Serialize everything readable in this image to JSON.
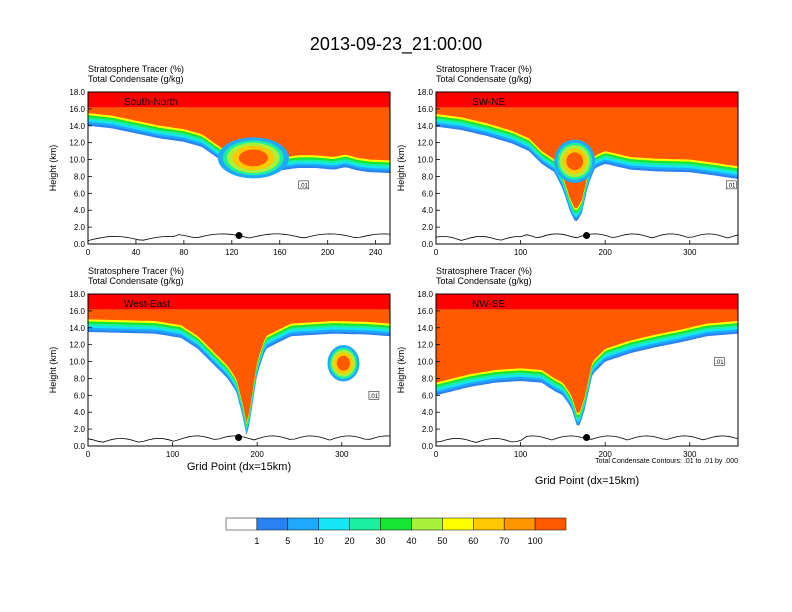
{
  "title": "2013-09-23_21:00:00",
  "panel_labels": [
    "Stratosphere Tracer   (%)",
    "Total Condensate   (g/kg)"
  ],
  "x_axis_title": "Grid Point (dx=15km)",
  "y_axis_title": "Height (km)",
  "contour_note": "Total Condensate Contours: .01 to .01 by .000",
  "contour_label": ".01",
  "colors": {
    "levels": [
      "#ffffff",
      "#2a82f0",
      "#1ea9ff",
      "#16e5f5",
      "#1af0a0",
      "#16e534",
      "#a8f03c",
      "#ffff00",
      "#ffc800",
      "#ff9600",
      "#ff5a00",
      "#ff0000"
    ],
    "contour": "#000000",
    "marker": "#000000"
  },
  "chart_data": [
    {
      "type": "heatmap",
      "name": "South-North",
      "xlim": [
        0,
        252
      ],
      "ylim": [
        0,
        18
      ],
      "xticks": [
        "0",
        "40",
        "80",
        "120",
        "160",
        "200",
        "240"
      ],
      "xtick_values": [
        0,
        40,
        80,
        120,
        160,
        200,
        240
      ],
      "yticks": [
        "0.0",
        "2.0",
        "4.0",
        "6.0",
        "8.0",
        "10.0",
        "12.0",
        "14.0",
        "16.0",
        "18.0"
      ],
      "tropopause_km": [
        [
          0,
          15.5
        ],
        [
          20,
          15.2
        ],
        [
          40,
          14.6
        ],
        [
          60,
          14.0
        ],
        [
          80,
          13.6
        ],
        [
          95,
          13.0
        ],
        [
          105,
          12.0
        ],
        [
          112,
          11.3
        ],
        [
          120,
          11.6
        ],
        [
          135,
          11.2
        ],
        [
          150,
          10.4
        ],
        [
          160,
          10.2
        ],
        [
          175,
          10.5
        ],
        [
          190,
          10.5
        ],
        [
          205,
          10.3
        ],
        [
          215,
          10.6
        ],
        [
          225,
          10.2
        ],
        [
          235,
          10.0
        ],
        [
          252,
          9.9
        ]
      ],
      "blob": {
        "x": 138,
        "y": 10.2,
        "rx": 22,
        "ry": 1.8
      },
      "marker": {
        "x": 126,
        "y": 1.0
      },
      "contour_label_pos": {
        "x": 180,
        "y": 7.0
      }
    },
    {
      "type": "heatmap",
      "name": "SW-NE",
      "xlim": [
        0,
        357
      ],
      "ylim": [
        0,
        18
      ],
      "xticks": [
        "0",
        "100",
        "200",
        "300"
      ],
      "xtick_values": [
        0,
        100,
        200,
        300
      ],
      "yticks": [
        "0.0",
        "2.0",
        "4.0",
        "6.0",
        "8.0",
        "10.0",
        "12.0",
        "14.0",
        "16.0",
        "18.0"
      ],
      "tropopause_km": [
        [
          0,
          15.4
        ],
        [
          30,
          15.0
        ],
        [
          60,
          14.3
        ],
        [
          90,
          13.4
        ],
        [
          110,
          12.5
        ],
        [
          125,
          11.0
        ],
        [
          140,
          10.0
        ],
        [
          150,
          8.0
        ],
        [
          158,
          5.5
        ],
        [
          165,
          4.0
        ],
        [
          172,
          5.0
        ],
        [
          180,
          8.5
        ],
        [
          188,
          10.5
        ],
        [
          200,
          11.0
        ],
        [
          230,
          10.3
        ],
        [
          260,
          10.1
        ],
        [
          300,
          10.0
        ],
        [
          330,
          9.6
        ],
        [
          357,
          9.2
        ]
      ],
      "blob": {
        "x": 164,
        "y": 9.8,
        "rx": 18,
        "ry": 1.9
      },
      "marker": {
        "x": 178,
        "y": 1.0
      },
      "contour_label_pos": {
        "x": 349,
        "y": 7.0
      }
    },
    {
      "type": "heatmap",
      "name": "West-East",
      "xlim": [
        0,
        357
      ],
      "ylim": [
        0,
        18
      ],
      "xticks": [
        "0",
        "100",
        "200",
        "300"
      ],
      "xtick_values": [
        0,
        100,
        200,
        300
      ],
      "yticks": [
        "0.0",
        "2.0",
        "4.0",
        "6.0",
        "8.0",
        "10.0",
        "12.0",
        "14.0",
        "16.0",
        "18.0"
      ],
      "tropopause_km": [
        [
          0,
          15.0
        ],
        [
          40,
          14.9
        ],
        [
          80,
          14.8
        ],
        [
          110,
          14.3
        ],
        [
          130,
          13.0
        ],
        [
          150,
          11.0
        ],
        [
          165,
          9.5
        ],
        [
          175,
          8.0
        ],
        [
          183,
          5.0
        ],
        [
          188,
          2.5
        ],
        [
          193,
          5.5
        ],
        [
          200,
          10.0
        ],
        [
          210,
          13.0
        ],
        [
          240,
          14.5
        ],
        [
          290,
          14.8
        ],
        [
          330,
          14.7
        ],
        [
          357,
          14.5
        ]
      ],
      "blob": {
        "x": 302,
        "y": 9.8,
        "rx": 14,
        "ry": 1.6
      },
      "marker": {
        "x": 178,
        "y": 1.0
      },
      "contour_label_pos": {
        "x": 338,
        "y": 6.0
      }
    },
    {
      "type": "heatmap",
      "name": "NW-SE",
      "xlim": [
        0,
        357
      ],
      "ylim": [
        0,
        18
      ],
      "xticks": [
        "0",
        "100",
        "200",
        "300"
      ],
      "xtick_values": [
        0,
        100,
        200,
        300
      ],
      "yticks": [
        "0.0",
        "2.0",
        "4.0",
        "6.0",
        "8.0",
        "10.0",
        "12.0",
        "14.0",
        "16.0",
        "18.0"
      ],
      "tropopause_km": [
        [
          0,
          7.5
        ],
        [
          20,
          8.0
        ],
        [
          40,
          8.5
        ],
        [
          70,
          9.0
        ],
        [
          100,
          9.2
        ],
        [
          125,
          9.0
        ],
        [
          140,
          8.0
        ],
        [
          150,
          7.5
        ],
        [
          160,
          6.0
        ],
        [
          168,
          3.5
        ],
        [
          175,
          5.5
        ],
        [
          185,
          10.0
        ],
        [
          200,
          11.5
        ],
        [
          230,
          12.5
        ],
        [
          260,
          13.2
        ],
        [
          290,
          13.8
        ],
        [
          320,
          14.5
        ],
        [
          357,
          14.8
        ]
      ],
      "blob": null,
      "marker": {
        "x": 178,
        "y": 1.0
      },
      "contour_label_pos": {
        "x": 335,
        "y": 10.0
      }
    }
  ],
  "colorbar": {
    "labels": [
      "1",
      "5",
      "10",
      "20",
      "30",
      "40",
      "50",
      "60",
      "70",
      "100"
    ]
  }
}
